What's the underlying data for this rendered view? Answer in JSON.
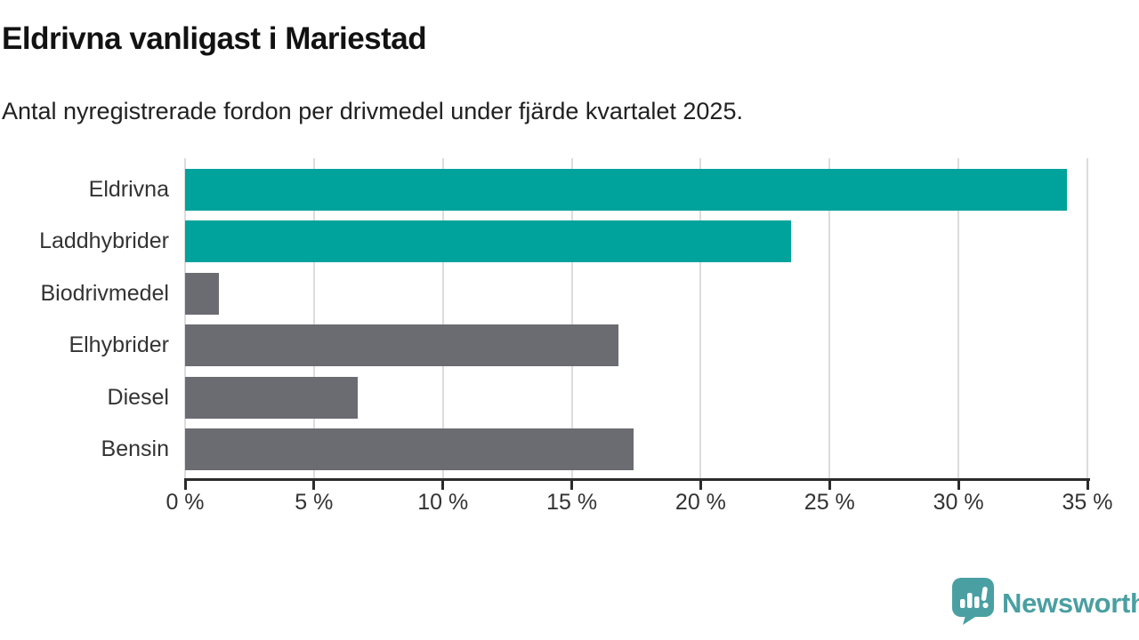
{
  "header": {
    "title": "Eldrivna vanligast i Mariestad",
    "subtitle": "Antal nyregistrerade fordon per drivmedel under fjärde kvartalet 2025."
  },
  "chart_data": {
    "type": "bar",
    "orientation": "horizontal",
    "title": "Eldrivna vanligast i Mariestad",
    "subtitle": "Antal nyregistrerade fordon per drivmedel under fjärde kvartalet 2025.",
    "categories": [
      "Eldrivna",
      "Laddhybrider",
      "Biodrivmedel",
      "Elhybrider",
      "Diesel",
      "Bensin"
    ],
    "values": [
      34.2,
      23.5,
      1.3,
      16.8,
      6.7,
      17.4
    ],
    "unit": "%",
    "bar_colors": [
      "#00A39B",
      "#00A39B",
      "#6B6B72",
      "#6B6B72",
      "#6B6B72",
      "#6B6B72"
    ],
    "xlabel": "",
    "ylabel": "",
    "xlim": [
      0,
      35
    ],
    "x_ticks": [
      0,
      5,
      10,
      15,
      20,
      25,
      30,
      35
    ],
    "x_tick_labels": [
      "0 %",
      "5 %",
      "10 %",
      "15 %",
      "20 %",
      "25 %",
      "30 %",
      "35 %"
    ],
    "grid": "vertical-gridlines-on",
    "legend": "none"
  },
  "footer": {
    "brand": "Newsworthy",
    "brand_color": "#4A9FA2",
    "logo_icon": "newsworthy-speech-bubble-chart-icon"
  },
  "colors": {
    "accent_teal": "#00A39B",
    "neutral_gray": "#6B6B72",
    "gridline": "#DCDCDC",
    "axis": "#2B2B2B",
    "title_text": "#121212",
    "label_text": "#333333"
  }
}
